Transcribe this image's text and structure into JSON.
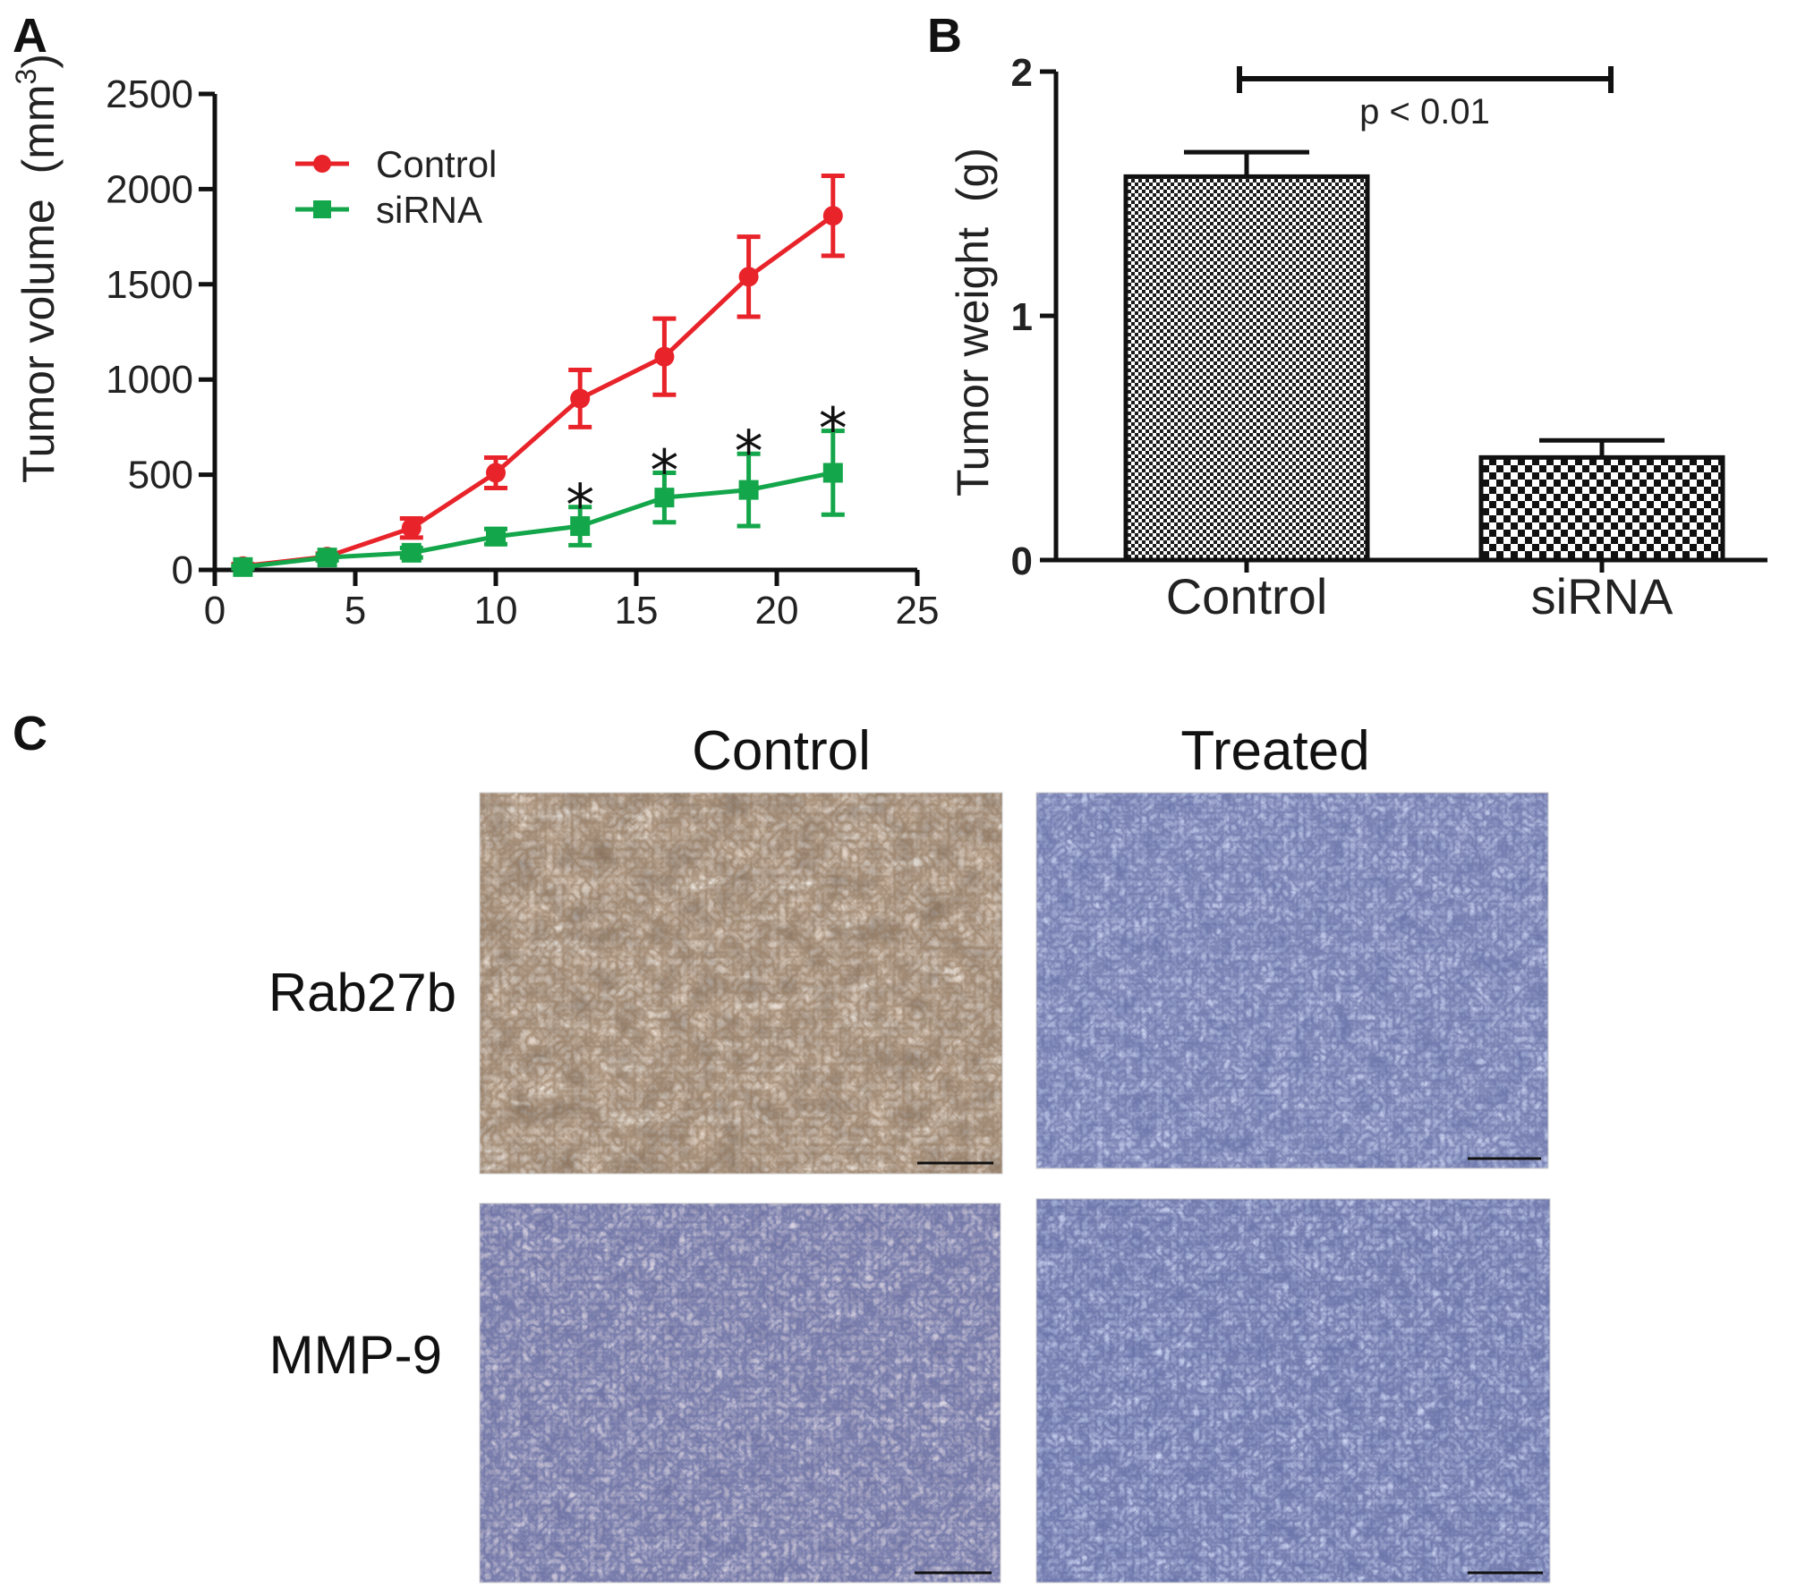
{
  "panel_labels": {
    "a": "A",
    "b": "B",
    "c": "C"
  },
  "colors": {
    "control": "#e8232a",
    "sirna": "#14a64a",
    "axis": "#111111"
  },
  "chart_data": [
    {
      "panel": "A",
      "type": "line",
      "ylabel": "Tumor volume",
      "ylabel_unit": "(mm",
      "ylabel_unit_sup": "3",
      "ylabel_unit_close": ")",
      "xlim": [
        0,
        25
      ],
      "ylim": [
        0,
        2500
      ],
      "xticks": [
        0,
        5,
        10,
        15,
        20,
        25
      ],
      "yticks": [
        0,
        500,
        1000,
        1500,
        2000,
        2500
      ],
      "legend_position": "top-left",
      "significance_marker": "*",
      "significant_x": [
        13,
        16,
        19,
        22
      ],
      "series": [
        {
          "name": "Control",
          "marker": "circle",
          "x": [
            1,
            4,
            7,
            10,
            13,
            16,
            19,
            22
          ],
          "y": [
            20,
            70,
            220,
            510,
            900,
            1120,
            1540,
            1860
          ],
          "err": [
            10,
            15,
            50,
            80,
            150,
            200,
            210,
            210
          ]
        },
        {
          "name": "siRNA",
          "marker": "square",
          "x": [
            1,
            4,
            7,
            10,
            13,
            16,
            19,
            22
          ],
          "y": [
            15,
            65,
            90,
            175,
            230,
            380,
            420,
            510
          ],
          "err": [
            8,
            15,
            25,
            40,
            100,
            130,
            190,
            220
          ]
        }
      ]
    },
    {
      "panel": "B",
      "type": "bar",
      "ylabel": "Tumor weight",
      "ylabel_unit": "(g)",
      "ylim": [
        0,
        2
      ],
      "yticks": [
        0,
        1,
        2
      ],
      "categories": [
        "Control",
        "siRNA"
      ],
      "values": [
        1.57,
        0.42
      ],
      "err": [
        0.1,
        0.07
      ],
      "fill": [
        "fine-checkerboard",
        "coarse-checkerboard"
      ],
      "annotation": "p < 0.01"
    }
  ],
  "micrographs": {
    "column_labels": [
      "Control",
      "Treated"
    ],
    "row_labels": [
      "Rab27b",
      "MMP-9"
    ],
    "panels": [
      {
        "row": "Rab27b",
        "column": "Control",
        "stain": "brown-dominant"
      },
      {
        "row": "Rab27b",
        "column": "Treated",
        "stain": "blue-dominant"
      },
      {
        "row": "MMP-9",
        "column": "Control",
        "stain": "blue-with-brown"
      },
      {
        "row": "MMP-9",
        "column": "Treated",
        "stain": "blue-dominant"
      }
    ]
  }
}
